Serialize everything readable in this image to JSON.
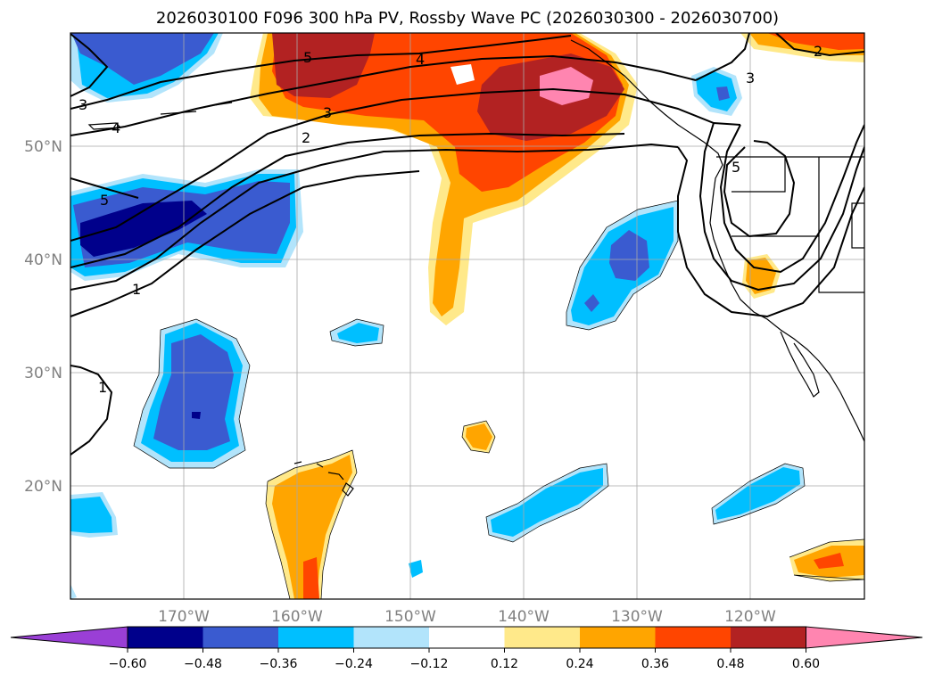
{
  "title": "2026030100 F096 300 hPa PV, Rossby Wave PC (2026030300 - 2026030700)",
  "lat_labels": [
    "50°N",
    "40°N",
    "30°N",
    "20°N"
  ],
  "lon_labels": [
    "170°W",
    "160°W",
    "150°W",
    "140°W",
    "130°W",
    "120°W"
  ],
  "colorbar": {
    "ticks": [
      "−0.60",
      "−0.48",
      "−0.36",
      "−0.24",
      "−0.12",
      "0.12",
      "0.24",
      "0.36",
      "0.48",
      "0.60"
    ],
    "colors": [
      "#9a3fd6",
      "#00008b",
      "#3a5bd0",
      "#00bfff",
      "#b2e4fb",
      "#ffffff",
      "#ffe98a",
      "#ffa500",
      "#ff4500",
      "#b22222",
      "#ff85b0"
    ]
  },
  "contour_labels": [
    "3",
    "4",
    "5",
    "4",
    "5",
    "3",
    "2",
    "1",
    "1",
    "2",
    "3",
    "5"
  ],
  "colors": {
    "pos_0.12": "#ffe98a",
    "pos_0.24": "#ffa500",
    "pos_0.36": "#ff4500",
    "pos_0.48": "#b22222",
    "pos_0.60": "#ff85b0",
    "neg_0.12": "#b2e4fb",
    "neg_0.24": "#00bfff",
    "neg_0.36": "#3a5bd0",
    "neg_0.48": "#00008b"
  }
}
